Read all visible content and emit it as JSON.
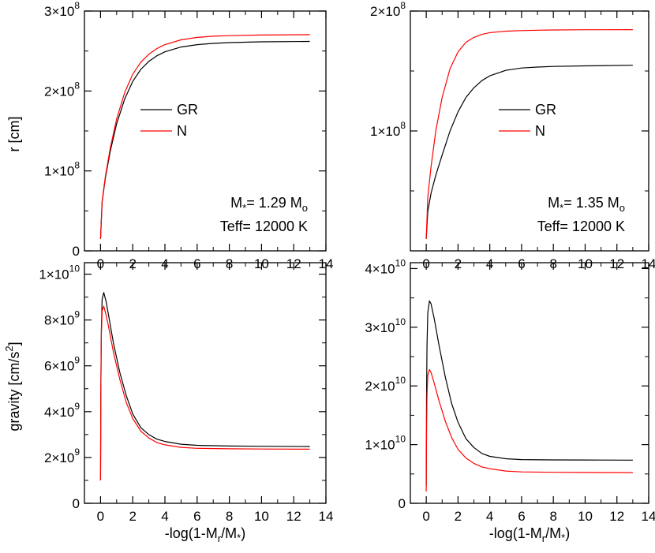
{
  "chart_data": [
    {
      "type": "line",
      "panel": "top-left",
      "ylabel": "r [cm]",
      "xlim": [
        -1,
        14
      ],
      "ylim": [
        0,
        300000000
      ],
      "xticks": [
        0,
        2,
        4,
        6,
        8,
        10,
        12,
        14
      ],
      "yticks": [
        {
          "value": 0,
          "mant": "0",
          "exp": ""
        },
        {
          "value": 100000000,
          "mant": "1×10",
          "exp": "8"
        },
        {
          "value": 200000000,
          "mant": "2×10",
          "exp": "8"
        },
        {
          "value": 300000000,
          "mant": "3×10",
          "exp": "8"
        }
      ],
      "legend": {
        "position": "center-left"
      },
      "annotation": {
        "mass_prefix": "M",
        "mass_sub": "*",
        "mass_value": "= 1.29 M",
        "mass_unit_sub": "o",
        "teff": "Teff= 12000 K"
      },
      "series": [
        {
          "name": "GR",
          "color": "#000000",
          "x": [
            0,
            0.1,
            0.3,
            0.6,
            1,
            1.5,
            2,
            2.5,
            3,
            3.5,
            4,
            5,
            6,
            7,
            8,
            10,
            13
          ],
          "y": [
            15000000,
            61000000,
            91000000,
            124000000,
            159000000,
            190000000,
            212000000,
            227000000,
            237000000,
            244000000,
            249000000,
            255000000,
            258000000,
            259500000,
            260500000,
            261500000,
            262000000
          ]
        },
        {
          "name": "N",
          "color": "#ff0000",
          "x": [
            0,
            0.1,
            0.3,
            0.6,
            1,
            1.5,
            2,
            2.5,
            3,
            3.5,
            4,
            5,
            6,
            7,
            8,
            10,
            13
          ],
          "y": [
            15000000,
            62000000,
            93000000,
            128000000,
            165000000,
            198000000,
            221000000,
            236000000,
            246000000,
            253000000,
            258000000,
            264000000,
            267000000,
            268500000,
            269200000,
            270000000,
            270500000
          ]
        }
      ]
    },
    {
      "type": "line",
      "panel": "top-right",
      "ylabel": "",
      "xlim": [
        -1,
        14
      ],
      "ylim": [
        0,
        200000000
      ],
      "xticks": [
        0,
        2,
        4,
        6,
        8,
        10,
        12,
        14
      ],
      "yticks": [
        {
          "value": 100000000,
          "mant": "1×10",
          "exp": "8"
        },
        {
          "value": 200000000,
          "mant": "2×10",
          "exp": "8"
        }
      ],
      "legend": {
        "position": "center-right"
      },
      "annotation": {
        "mass_prefix": "M",
        "mass_sub": "*",
        "mass_value": "= 1.35 M",
        "mass_unit_sub": "o",
        "teff": "Teff= 12000 K"
      },
      "series": [
        {
          "name": "GR",
          "color": "#000000",
          "x": [
            0,
            0.1,
            0.3,
            0.6,
            1,
            1.5,
            2,
            2.5,
            3,
            3.5,
            4,
            5,
            6,
            7,
            8,
            10,
            13
          ],
          "y": [
            10000000,
            33000000,
            48000000,
            63000000,
            80000000,
            100000000,
            116000000,
            128000000,
            136000000,
            142000000,
            146000000,
            150500000,
            152500000,
            153300000,
            153800000,
            154300000,
            154800000
          ]
        },
        {
          "name": "N",
          "color": "#ff0000",
          "x": [
            0,
            0.1,
            0.3,
            0.6,
            1,
            1.5,
            2,
            2.5,
            3,
            3.5,
            4,
            5,
            6,
            7,
            8,
            10,
            13
          ],
          "y": [
            10000000,
            45000000,
            70000000,
            100000000,
            128000000,
            152000000,
            166000000,
            174000000,
            178000000,
            180500000,
            182000000,
            183200000,
            183700000,
            184000000,
            184200000,
            184400000,
            184500000
          ]
        }
      ]
    },
    {
      "type": "line",
      "panel": "bottom-left",
      "ylabel": "gravity [cm/s",
      "ylabel_sup": "2",
      "ylabel_end": "]",
      "xlabel": "-log(1-M",
      "xlabel_sub": "r",
      "xlabel_mid": "/M",
      "xlabel_sub2": "*",
      "xlabel_end": ")",
      "xlim": [
        -1,
        14
      ],
      "ylim": [
        0,
        10500000000
      ],
      "xticks": [
        0,
        2,
        4,
        6,
        8,
        10,
        12,
        14
      ],
      "yticks": [
        {
          "value": 0,
          "mant": "0",
          "exp": ""
        },
        {
          "value": 2000000000,
          "mant": "2×10",
          "exp": "9"
        },
        {
          "value": 4000000000,
          "mant": "4×10",
          "exp": "9"
        },
        {
          "value": 6000000000,
          "mant": "6×10",
          "exp": "9"
        },
        {
          "value": 8000000000,
          "mant": "8×10",
          "exp": "9"
        },
        {
          "value": 10000000000,
          "mant": "1×10",
          "exp": "10"
        }
      ],
      "series": [
        {
          "name": "GR",
          "color": "#000000",
          "x": [
            0,
            0.02,
            0.05,
            0.1,
            0.2,
            0.35,
            0.5,
            0.8,
            1.2,
            1.6,
            2,
            2.5,
            3,
            3.5,
            4,
            5,
            6,
            8,
            10,
            13
          ],
          "y": [
            1000000000,
            5000000000,
            7500000000,
            8900000000,
            9200000000,
            8800000000,
            8200000000,
            7000000000,
            5700000000,
            4700000000,
            3900000000,
            3300000000,
            3000000000,
            2800000000,
            2700000000,
            2580000000,
            2530000000,
            2500000000,
            2490000000,
            2480000000
          ]
        },
        {
          "name": "N",
          "color": "#ff0000",
          "x": [
            0,
            0.02,
            0.05,
            0.1,
            0.2,
            0.35,
            0.5,
            0.8,
            1.2,
            1.6,
            2,
            2.5,
            3,
            3.5,
            4,
            5,
            6,
            8,
            10,
            13
          ],
          "y": [
            1000000000,
            5000000000,
            7300000000,
            8400000000,
            8600000000,
            8200000000,
            7700000000,
            6600000000,
            5400000000,
            4400000000,
            3700000000,
            3150000000,
            2850000000,
            2650000000,
            2550000000,
            2440000000,
            2400000000,
            2380000000,
            2370000000,
            2360000000
          ]
        }
      ]
    },
    {
      "type": "line",
      "panel": "bottom-right",
      "xlabel": "-log(1-M",
      "xlabel_sub": "r",
      "xlabel_mid": "/M",
      "xlabel_sub2": "*",
      "xlabel_end": ")",
      "xlim": [
        -1,
        14
      ],
      "ylim": [
        0,
        41000000000
      ],
      "xticks": [
        0,
        2,
        4,
        6,
        8,
        10,
        12,
        14
      ],
      "yticks": [
        {
          "value": 0,
          "mant": "0",
          "exp": ""
        },
        {
          "value": 10000000000,
          "mant": "1×10",
          "exp": "10"
        },
        {
          "value": 20000000000,
          "mant": "2×10",
          "exp": "10"
        },
        {
          "value": 30000000000,
          "mant": "3×10",
          "exp": "10"
        },
        {
          "value": 40000000000,
          "mant": "4×10",
          "exp": "10"
        }
      ],
      "series": [
        {
          "name": "GR",
          "color": "#000000",
          "x": [
            0,
            0.02,
            0.05,
            0.1,
            0.2,
            0.3,
            0.5,
            0.8,
            1.2,
            1.6,
            2,
            2.5,
            3,
            3.5,
            4,
            5,
            6,
            8,
            10,
            13
          ],
          "y": [
            3000000000,
            18000000000,
            27000000000,
            32500000000,
            34500000000,
            34000000000,
            31500000000,
            27000000000,
            21500000000,
            17000000000,
            13800000000,
            11000000000,
            9500000000,
            8500000000,
            8000000000,
            7600000000,
            7450000000,
            7400000000,
            7380000000,
            7350000000
          ]
        },
        {
          "name": "N",
          "color": "#ff0000",
          "x": [
            0,
            0.02,
            0.05,
            0.1,
            0.2,
            0.3,
            0.5,
            0.8,
            1.2,
            1.6,
            2,
            2.5,
            3,
            3.5,
            4,
            5,
            6,
            8,
            10,
            13
          ],
          "y": [
            2000000000,
            12000000000,
            18500000000,
            21800000000,
            22800000000,
            22300000000,
            20500000000,
            17500000000,
            14000000000,
            11200000000,
            9200000000,
            7700000000,
            6800000000,
            6200000000,
            5900000000,
            5500000000,
            5350000000,
            5280000000,
            5250000000,
            5230000000
          ]
        }
      ]
    }
  ]
}
